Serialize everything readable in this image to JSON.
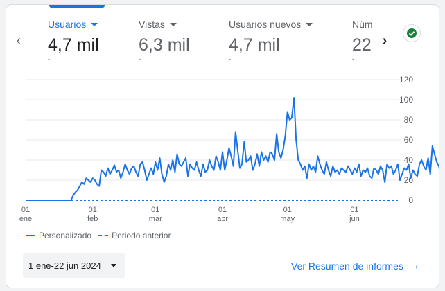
{
  "metrics": [
    {
      "label": "Usuarios",
      "value": "4,7 mil",
      "active": true
    },
    {
      "label": "Vistas",
      "value": "6,3 mil"
    },
    {
      "label": "Usuarios nuevos",
      "value": "4,7 mil"
    },
    {
      "label": "Núm",
      "value": "22"
    }
  ],
  "nav": {
    "prev_icon": "chevron-left-icon",
    "next_icon": "chevron-right-icon"
  },
  "status_icon": "check-circle-icon",
  "colors": {
    "accent": "#1a73e8",
    "status_green": "#188038",
    "grid": "#e8eaed"
  },
  "chart_data": {
    "type": "line",
    "x_range": [
      "2024-01-01",
      "2024-06-22"
    ],
    "ylim": [
      0,
      120
    ],
    "y_ticks": [
      0,
      20,
      40,
      60,
      80,
      100,
      120
    ],
    "x_ticks": [
      {
        "day": "01",
        "month": "ene",
        "date": "2024-01-01"
      },
      {
        "day": "01",
        "month": "feb",
        "date": "2024-02-01"
      },
      {
        "day": "01",
        "month": "mar",
        "date": "2024-03-01"
      },
      {
        "day": "01",
        "month": "abr",
        "date": "2024-04-01"
      },
      {
        "day": "01",
        "month": "may",
        "date": "2024-05-01"
      },
      {
        "day": "01",
        "month": "jun",
        "date": "2024-06-01"
      }
    ],
    "series": [
      {
        "name": "Personalizado",
        "style": "solid",
        "start": "2024-01-01",
        "values": [
          0,
          0,
          0,
          0,
          0,
          0,
          0,
          0,
          0,
          0,
          0,
          0,
          0,
          0,
          0,
          0,
          0,
          0,
          0,
          0,
          0,
          0,
          5,
          8,
          10,
          14,
          18,
          16,
          22,
          20,
          18,
          22,
          20,
          16,
          14,
          30,
          28,
          24,
          32,
          26,
          30,
          35,
          28,
          30,
          22,
          28,
          36,
          30,
          26,
          32,
          34,
          28,
          24,
          36,
          38,
          30,
          20,
          26,
          32,
          26,
          38,
          30,
          42,
          26,
          18,
          24,
          36,
          30,
          40,
          28,
          46,
          36,
          34,
          38,
          42,
          24,
          36,
          32,
          30,
          38,
          30,
          24,
          36,
          28,
          30,
          40,
          34,
          30,
          44,
          38,
          30,
          48,
          30,
          40,
          52,
          44,
          34,
          68,
          50,
          32,
          36,
          58,
          38,
          40,
          44,
          30,
          36,
          46,
          34,
          48,
          40,
          44,
          38,
          48,
          46,
          40,
          66,
          48,
          42,
          50,
          64,
          88,
          80,
          82,
          102,
          60,
          40,
          36,
          30,
          34,
          22,
          36,
          30,
          34,
          28,
          44,
          36,
          30,
          26,
          38,
          30,
          24,
          34,
          28,
          30,
          26,
          32,
          30,
          28,
          34,
          30,
          26,
          32,
          28,
          36,
          24,
          30,
          28,
          32,
          24,
          22,
          32,
          30,
          26,
          34,
          30,
          18,
          36,
          32,
          34,
          26,
          30,
          36,
          20,
          26,
          32,
          30,
          36,
          22,
          30,
          26,
          24,
          36,
          40,
          34,
          30,
          42,
          26,
          54,
          46,
          38,
          34,
          20,
          26,
          26
        ]
      },
      {
        "name": "Periodo anterior",
        "style": "dashed",
        "values": [
          0
        ]
      }
    ]
  },
  "legend": {
    "current": "Personalizado",
    "previous": "Periodo anterior"
  },
  "footer": {
    "date_range": "1 ene-22 jun 2024",
    "report_link": "Ver Resumen de informes"
  }
}
